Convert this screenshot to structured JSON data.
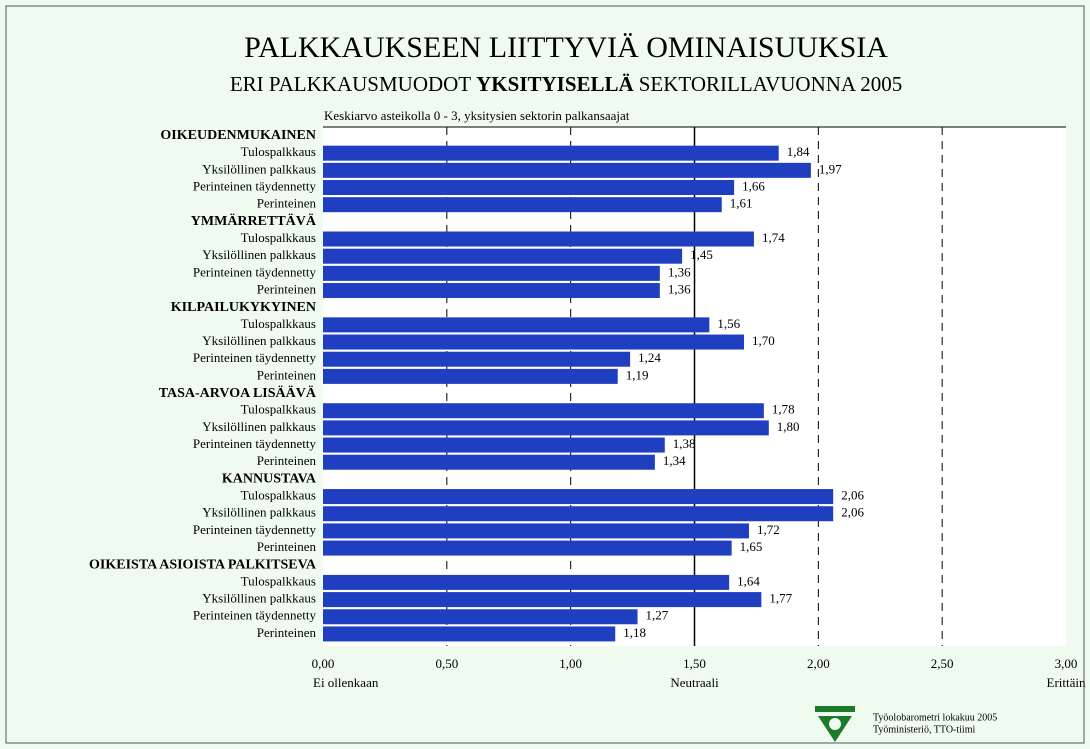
{
  "chart_data": {
    "type": "bar",
    "orientation": "horizontal",
    "title": "PALKKAUKSEEN LIITTYVIÄ OMINAISUUKSIA",
    "subtitle": [
      "ERI PALKKAUSMUODOT",
      "YKSITYISELLÄ",
      "SEKTORILLAVUONNA 2005"
    ],
    "note": "Keskiarvo asteikolla 0 - 3, yksitysien sektorin palkansaajat",
    "color": "#1f3fc0",
    "groups": [
      {
        "name": "OIKEUDENMUKAINEN",
        "categories": [
          "Tulospalkkaus",
          "Yksilöllinen palkkaus",
          "Perinteinen täydennetty",
          "Perinteinen"
        ],
        "values": [
          1.84,
          1.97,
          1.66,
          1.61
        ],
        "value_labels": [
          "1,84",
          "1,97",
          "1,66",
          "1,61"
        ]
      },
      {
        "name": "YMMÄRRETTÄVÄ",
        "categories": [
          "Tulospalkkaus",
          "Yksilöllinen palkkaus",
          "Perinteinen täydennetty",
          "Perinteinen"
        ],
        "values": [
          1.74,
          1.45,
          1.36,
          1.36
        ],
        "value_labels": [
          "1,74",
          "1,45",
          "1,36",
          "1,36"
        ]
      },
      {
        "name": "KILPAILUKYKYINEN",
        "categories": [
          "Tulospalkkaus",
          "Yksilöllinen palkkaus",
          "Perinteinen täydennetty",
          "Perinteinen"
        ],
        "values": [
          1.56,
          1.7,
          1.24,
          1.19
        ],
        "value_labels": [
          "1,56",
          "1,70",
          "1,24",
          "1,19"
        ]
      },
      {
        "name": "TASA-ARVOA LISÄÄVÄ",
        "categories": [
          "Tulospalkkaus",
          "Yksilöllinen palkkaus",
          "Perinteinen täydennetty",
          "Perinteinen"
        ],
        "values": [
          1.78,
          1.8,
          1.38,
          1.34
        ],
        "value_labels": [
          "1,78",
          "1,80",
          "1,38",
          "1,34"
        ]
      },
      {
        "name": "KANNUSTAVA",
        "categories": [
          "Tulospalkkaus",
          "Yksilöllinen palkkaus",
          "Perinteinen täydennetty",
          "Perinteinen"
        ],
        "values": [
          2.06,
          2.06,
          1.72,
          1.65
        ],
        "value_labels": [
          "2,06",
          "2,06",
          "1,72",
          "1,65"
        ]
      },
      {
        "name": "OIKEISTA ASIOISTA PALKITSEVA",
        "categories": [
          "Tulospalkkaus",
          "Yksilöllinen palkkaus",
          "Perinteinen täydennetty",
          "Perinteinen"
        ],
        "values": [
          1.64,
          1.77,
          1.27,
          1.18
        ],
        "value_labels": [
          "1,64",
          "1,77",
          "1,27",
          "1,18"
        ]
      }
    ],
    "xlim": [
      0,
      3
    ],
    "xticks": [
      {
        "value": 0,
        "label": "0,00"
      },
      {
        "value": 0.5,
        "label": "0,50"
      },
      {
        "value": 1,
        "label": "1,00"
      },
      {
        "value": 1.5,
        "label": "1,50"
      },
      {
        "value": 2,
        "label": "2,00"
      },
      {
        "value": 2.5,
        "label": "2,50"
      },
      {
        "value": 3,
        "label": "3,00"
      }
    ],
    "grid": true,
    "grid_style": "dashed",
    "solid_gridline": 1.5,
    "axis_annotations": [
      {
        "value": 0,
        "label": "Ei ollenkaan"
      },
      {
        "value": 1.5,
        "label": "Neutraali"
      },
      {
        "value": 3,
        "label": "Erittäin"
      }
    ],
    "source": [
      "Työolobarometri lokakuu 2005",
      "Työministeriö, TTO-tiimi"
    ]
  }
}
